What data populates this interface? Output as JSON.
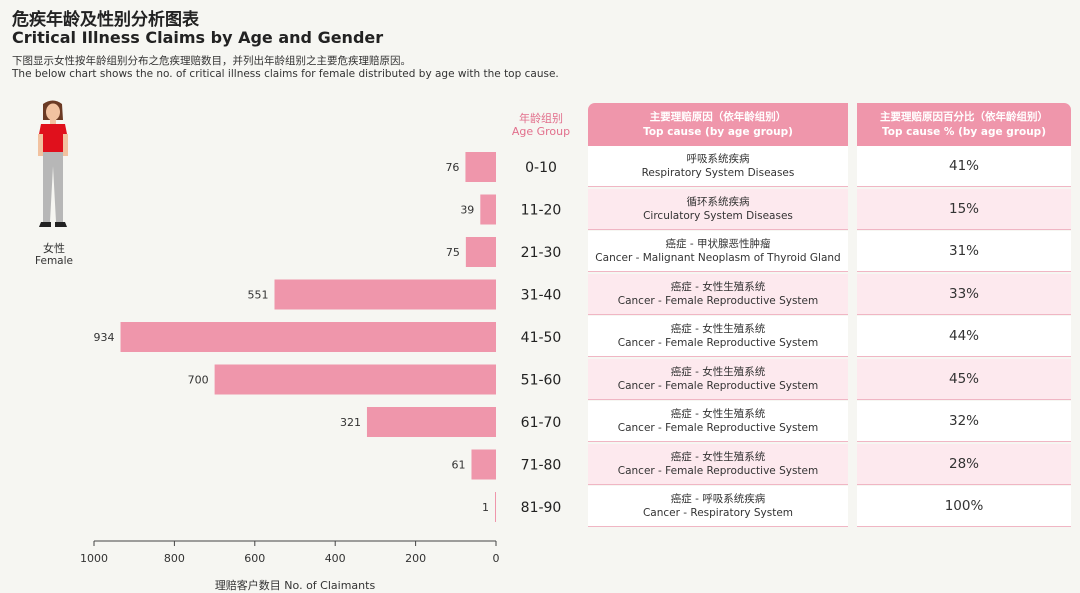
{
  "title_zh": "危疾年龄及性别分析图表",
  "title_en": "Critical Illness Claims by Age and Gender",
  "desc_zh": "下图显示女性按年龄组别分布之危疾理赔数目，并列出年龄组别之主要危疾理赔原因。",
  "desc_en": "The below chart shows the no. of critical illness claims for female distributed by age with the top cause.",
  "person": {
    "label_zh": "女性",
    "label_en": "Female"
  },
  "age_header": {
    "zh": "年龄组别",
    "en": "Age Group"
  },
  "cause_header": {
    "zh": "主要理赔原因（依年龄组别）",
    "en": "Top cause (by age group)"
  },
  "pct_header": {
    "zh": "主要理赔原因百分比（依年龄组别）",
    "en": "Top cause % (by age group)"
  },
  "rows": [
    {
      "cause_zh": "呼吸系统疾病",
      "cause_en": "Respiratory System Diseases",
      "pct": "41%"
    },
    {
      "cause_zh": "循环系统疾病",
      "cause_en": "Circulatory System Diseases",
      "pct": "15%"
    },
    {
      "cause_zh": "癌症 - 甲状腺恶性肿瘤",
      "cause_en": "Cancer - Malignant Neoplasm of Thyroid Gland",
      "pct": "31%"
    },
    {
      "cause_zh": "癌症 - 女性生殖系统",
      "cause_en": "Cancer - Female Reproductive System",
      "pct": "33%"
    },
    {
      "cause_zh": "癌症 - 女性生殖系统",
      "cause_en": "Cancer - Female Reproductive System",
      "pct": "44%"
    },
    {
      "cause_zh": "癌症 - 女性生殖系统",
      "cause_en": "Cancer - Female Reproductive System",
      "pct": "45%"
    },
    {
      "cause_zh": "癌症 - 女性生殖系统",
      "cause_en": "Cancer - Female Reproductive System",
      "pct": "32%"
    },
    {
      "cause_zh": "癌症 - 女性生殖系统",
      "cause_en": "Cancer - Female Reproductive System",
      "pct": "28%"
    },
    {
      "cause_zh": "癌症 - 呼吸系统疾病",
      "cause_en": "Cancer - Respiratory System",
      "pct": "100%"
    }
  ],
  "colors": {
    "bar": "#ef96ab",
    "accent": "#e26f8c",
    "header_bg": "#ef96ab",
    "row_alt": "#fde9ee"
  },
  "chart_data": {
    "type": "bar",
    "orientation": "horizontal",
    "title": "Critical Illness Claims by Age and Gender",
    "categories": [
      "0-10",
      "11-20",
      "21-30",
      "31-40",
      "41-50",
      "51-60",
      "61-70",
      "71-80",
      "81-90"
    ],
    "values": [
      76,
      39,
      75,
      551,
      934,
      700,
      321,
      61,
      1
    ],
    "xlabel": "理赔客户数目 No. of Claimants",
    "xlim": [
      0,
      1000
    ],
    "xticks": [
      1000,
      800,
      600,
      400,
      200,
      0
    ],
    "x_reversed": true,
    "grid": false
  }
}
